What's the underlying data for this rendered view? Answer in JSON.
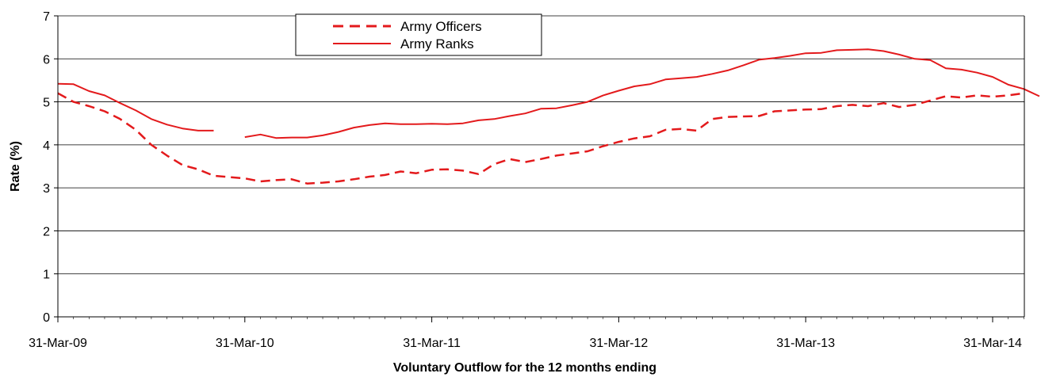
{
  "chart_data": {
    "type": "line",
    "title": "",
    "xlabel": "Voluntary Outflow for the 12 months ending",
    "ylabel": "Rate (%)",
    "ylim": [
      0,
      7
    ],
    "yticks": [
      "0",
      "1",
      "2",
      "3",
      "4",
      "5",
      "6",
      "7"
    ],
    "xticks": [
      "31-Mar-09",
      "31-Mar-10",
      "31-Mar-11",
      "31-Mar-12",
      "31-Mar-13",
      "31-Mar-14"
    ],
    "grid": "horizontal",
    "legend_position": "top-center",
    "months_per_tick": 12,
    "series": [
      {
        "name": "Army Officers",
        "style": "dashed",
        "color": "#e31a1c",
        "values": [
          5.2,
          5.0,
          4.9,
          4.78,
          4.6,
          4.35,
          4.0,
          3.75,
          3.53,
          3.43,
          3.28,
          3.25,
          3.22,
          3.15,
          3.18,
          3.2,
          3.1,
          3.12,
          3.15,
          3.2,
          3.26,
          3.3,
          3.38,
          3.34,
          3.42,
          3.43,
          3.4,
          3.32,
          3.55,
          3.67,
          3.6,
          3.67,
          3.75,
          3.8,
          3.85,
          3.97,
          4.07,
          4.15,
          4.2,
          4.35,
          4.37,
          4.33,
          4.6,
          4.65,
          4.66,
          4.67,
          4.78,
          4.8,
          4.82,
          4.83,
          4.9,
          4.93,
          4.9,
          4.97,
          4.88,
          4.93,
          5.03,
          5.13,
          5.1,
          5.15,
          5.12,
          5.15,
          5.2
        ]
      },
      {
        "name": "Army Ranks",
        "style": "solid",
        "color": "#e31a1c",
        "values": [
          5.42,
          5.41,
          5.25,
          5.15,
          4.97,
          4.8,
          4.6,
          4.47,
          4.38,
          4.33,
          4.33,
          null,
          4.18,
          4.24,
          4.16,
          4.17,
          4.17,
          4.22,
          4.3,
          4.4,
          4.46,
          4.5,
          4.48,
          4.48,
          4.49,
          4.48,
          4.5,
          4.57,
          4.6,
          4.67,
          4.73,
          4.84,
          4.85,
          4.92,
          5.0,
          5.15,
          5.26,
          5.36,
          5.41,
          5.52,
          5.55,
          5.58,
          5.65,
          5.73,
          5.85,
          5.98,
          6.02,
          6.07,
          6.13,
          6.14,
          6.2,
          6.21,
          6.22,
          6.18,
          6.1,
          6.0,
          5.97,
          5.78,
          5.75,
          5.68,
          5.58,
          5.4,
          5.3,
          5.13
        ]
      }
    ]
  }
}
